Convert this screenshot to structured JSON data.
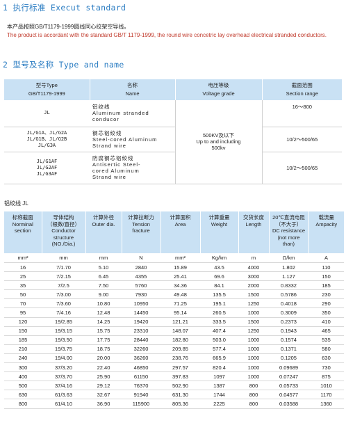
{
  "section1": {
    "title": "1 执行标准 Execut standard",
    "zh": "本产品按照GB/T1179-1999圆线同心绞架空导线。",
    "en": "The product is accordant with the standard GB/T 1179-1999, the round wire concetric lay overhead electrical stranded conductors."
  },
  "section2": {
    "title": "2 型号及名称 Type and name",
    "headers": [
      {
        "zh": "型号Type",
        "en": "GB/T1179-1999"
      },
      {
        "zh": "名称",
        "en": "Name"
      },
      {
        "zh": "电压等级",
        "en": "Voltage grade"
      },
      {
        "zh": "截面范围",
        "en": "Section range"
      }
    ],
    "rows": [
      {
        "type": [
          "JL"
        ],
        "name": [
          "铝绞线",
          "Aluminum stranded",
          "conducor"
        ],
        "range": "16～800"
      },
      {
        "type": [
          "JL/G1A、JL/G2A",
          "JL/G1B、JL/G2B",
          "JL/G3A"
        ],
        "name": [
          "钢芯铝绞线",
          "Steel-cored Aluminum",
          "Strand wire"
        ],
        "range": "10/2～500/65"
      },
      {
        "type": [
          "JL/G1AF",
          "JL/G2AF",
          "JL/G3AF"
        ],
        "name": [
          "防腐钢芯铝绞线",
          "Antisertic Steel-",
          "cored Aluminum",
          "Strand wire"
        ],
        "range": "10/2～500/65"
      }
    ],
    "voltage": [
      "500KV及以下",
      "Up to and including",
      "500kv"
    ]
  },
  "spec": {
    "label": "铝绞线  JL",
    "headers": [
      [
        "标称截面",
        "Norminal",
        "section"
      ],
      [
        "导体结构",
        "（根数/直径）",
        "Conductor",
        "structure",
        "(NO./Dia.)"
      ],
      [
        "计算外径",
        "Outer dia."
      ],
      [
        "计算拉断力",
        "Tension",
        "fracture"
      ],
      [
        "计算面积",
        "Area"
      ],
      [
        "计算重量",
        "Weight"
      ],
      [
        "交货长度",
        "Length"
      ],
      [
        "20℃直流电阻",
        "（不大于）",
        "DC resistance",
        "(not more",
        "than)"
      ],
      [
        "载流量",
        "Ampacity"
      ]
    ],
    "units": [
      "mm²",
      "mm",
      "mm",
      "N",
      "mm²",
      "Kg/km",
      "m",
      "Ω/km",
      "A"
    ],
    "rows": [
      [
        "16",
        "7/1.70",
        "5.10",
        "2840",
        "15.89",
        "43.5",
        "4000",
        "1.802",
        "110"
      ],
      [
        "25",
        "7/2.15",
        "6.45",
        "4355",
        "25.41",
        "69.6",
        "3000",
        "1.127",
        "150"
      ],
      [
        "35",
        "7/2.5",
        "7.50",
        "5760",
        "34.36",
        "84.1",
        "2000",
        "0.8332",
        "185"
      ],
      [
        "50",
        "7/3.00",
        "9.00",
        "7930",
        "49.48",
        "135.5",
        "1500",
        "0.5786",
        "230"
      ],
      [
        "70",
        "7/3.60",
        "10.80",
        "10950",
        "71.25",
        "195.1",
        "1250",
        "0.4018",
        "290"
      ],
      [
        "95",
        "7/4.16",
        "12.48",
        "14450",
        "95.14",
        "260.5",
        "1000",
        "0.3009",
        "350"
      ],
      [
        "120",
        "19/2.85",
        "14.25",
        "19420",
        "121.21",
        "333.5",
        "1500",
        "0.2373",
        "410"
      ],
      [
        "150",
        "19/3.15",
        "15.75",
        "23310",
        "148.07",
        "407.4",
        "1250",
        "0.1943",
        "465"
      ],
      [
        "185",
        "19/3.50",
        "17.75",
        "28440",
        "182.80",
        "503.0",
        "1000",
        "0.1574",
        "535"
      ],
      [
        "210",
        "19/3.75",
        "18.75",
        "32260",
        "209.85",
        "577.4",
        "1000",
        "0.1371",
        "580"
      ],
      [
        "240",
        "19/4.00",
        "20.00",
        "36260",
        "238.76",
        "665.9",
        "1000",
        "0.1205",
        "630"
      ],
      [
        "300",
        "37/3.20",
        "22.40",
        "46850",
        "297.57",
        "820.4",
        "1000",
        "0.09689",
        "730"
      ],
      [
        "400",
        "37/3.70",
        "25.90",
        "61150",
        "397.83",
        "1097",
        "1000",
        "0.07247",
        "875"
      ],
      [
        "500",
        "37/4.16",
        "29.12",
        "76370",
        "502.90",
        "1387",
        "800",
        "0.05733",
        "1010"
      ],
      [
        "630",
        "61/3.63",
        "32.67",
        "91940",
        "631.30",
        "1744",
        "800",
        "0.04577",
        "1170"
      ],
      [
        "800",
        "61/4.10",
        "36.90",
        "115900",
        "805.36",
        "2225",
        "800",
        "0.03588",
        "1360"
      ]
    ]
  }
}
